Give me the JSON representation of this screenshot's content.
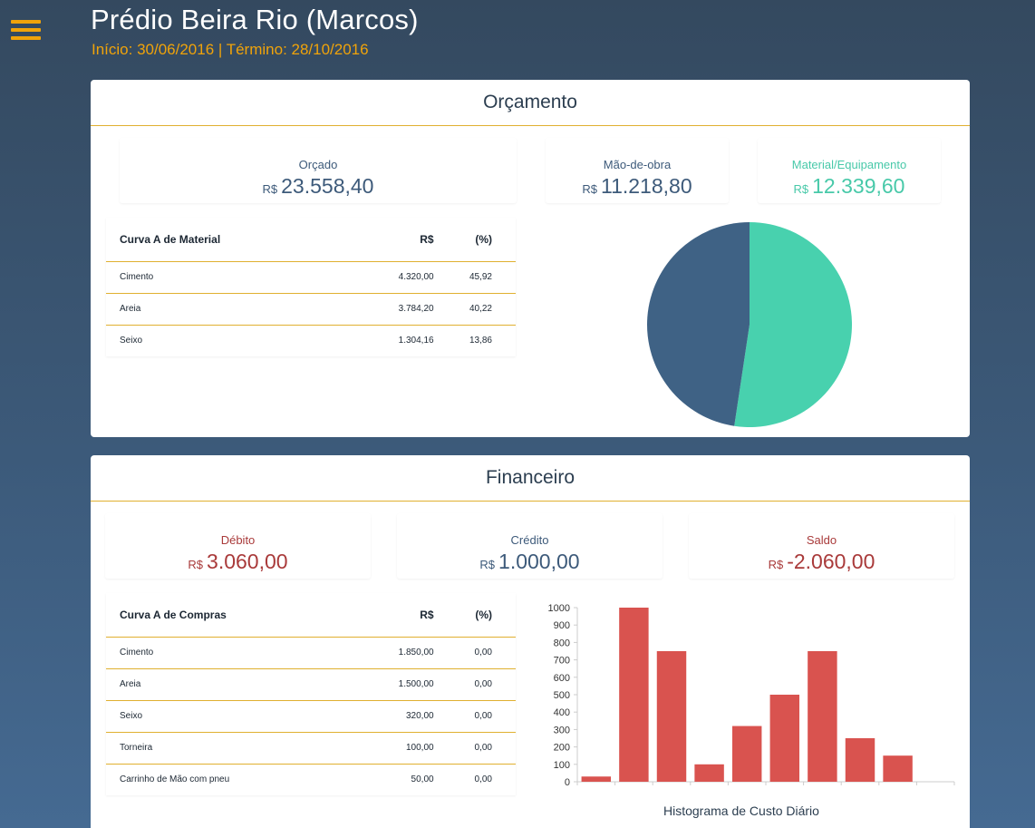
{
  "header": {
    "title": "Prédio Beira Rio (Marcos)",
    "dates": "Início: 30/06/2016 | Término: 28/10/2016"
  },
  "orcamento": {
    "title": "Orçamento",
    "orcado": {
      "label": "Orçado",
      "currency": "R$",
      "value": "23.558,40"
    },
    "mao_de_obra": {
      "label": "Mão-de-obra",
      "currency": "R$",
      "value": "11.218,80"
    },
    "material": {
      "label": "Material/Equipamento",
      "currency": "R$",
      "value": "12.339,60"
    },
    "table": {
      "headers": [
        "Curva A de Material",
        "R$",
        "(%)"
      ],
      "rows": [
        [
          "Cimento",
          "4.320,00",
          "45,92"
        ],
        [
          "Areia",
          "3.784,20",
          "40,22"
        ],
        [
          "Seixo",
          "1.304,16",
          "13,86"
        ]
      ]
    },
    "pie": {
      "slices": [
        {
          "name": "Material/Equipamento",
          "value": 12339.6,
          "color": "#48d1ae"
        },
        {
          "name": "Mão-de-obra",
          "value": 11218.8,
          "color": "#3f6285"
        }
      ]
    }
  },
  "financeiro": {
    "title": "Financeiro",
    "debito": {
      "label": "Débito",
      "currency": "R$",
      "value": "3.060,00"
    },
    "credito": {
      "label": "Crédito",
      "currency": "R$",
      "value": "1.000,00"
    },
    "saldo": {
      "label": "Saldo",
      "currency": "R$",
      "value": "-2.060,00"
    },
    "table": {
      "headers": [
        "Curva A de Compras",
        "R$",
        "(%)"
      ],
      "rows": [
        [
          "Cimento",
          "1.850,00",
          "0,00"
        ],
        [
          "Areia",
          "1.500,00",
          "0,00"
        ],
        [
          "Seixo",
          "320,00",
          "0,00"
        ],
        [
          "Torneira",
          "100,00",
          "0,00"
        ],
        [
          "Carrinho de Mão com pneu",
          "50,00",
          "0,00"
        ]
      ]
    }
  },
  "colors": {
    "accent": "#f0a30a",
    "blue": "#3d5a7a",
    "teal": "#48c9a9",
    "red": "#a93a3a",
    "bar": "#d9534f"
  },
  "chart_data": {
    "type": "bar",
    "title": "Histograma de Custo Diário",
    "xlabel": "",
    "ylabel": "",
    "values": [
      30,
      1000,
      750,
      100,
      320,
      500,
      750,
      250,
      150
    ],
    "ylim": [
      0,
      1000
    ],
    "yticks": [
      0,
      100,
      200,
      300,
      400,
      500,
      600,
      700,
      800,
      900,
      1000
    ],
    "grid": false
  }
}
